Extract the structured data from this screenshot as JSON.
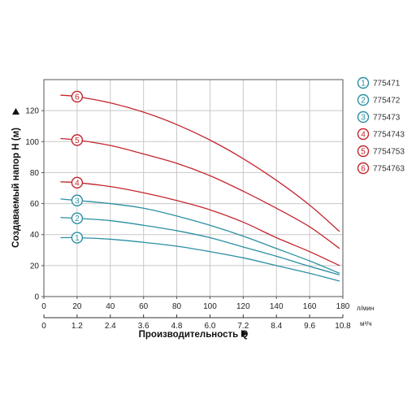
{
  "chart_data": {
    "type": "line",
    "xlabel": "Производительность Q",
    "xunit_primary": "л/мин",
    "xunit_secondary": "м³/ч",
    "ylabel": "Создаваемый напор H (м)",
    "xlim": [
      0,
      180
    ],
    "ylim": [
      0,
      140
    ],
    "x_ticks": [
      "0",
      "20",
      "40",
      "60",
      "80",
      "100",
      "120",
      "140",
      "160",
      "180"
    ],
    "x_ticks_secondary": [
      "0",
      "1.2",
      "2.4",
      "3.6",
      "4.8",
      "6.0",
      "7.2",
      "8.4",
      "9.6",
      "10.8"
    ],
    "y_ticks": [
      "0",
      "20",
      "40",
      "60",
      "80",
      "100",
      "120"
    ],
    "grid": true,
    "legend_position": "right",
    "series": [
      {
        "name": "775471",
        "marker": "1",
        "color": "#2b8fa3",
        "x": [
          10,
          20,
          40,
          60,
          80,
          100,
          120,
          140,
          160,
          178
        ],
        "y": [
          38,
          38,
          37,
          35,
          32.5,
          29,
          25,
          20,
          15,
          10
        ]
      },
      {
        "name": "775472",
        "marker": "2",
        "color": "#2b8fa3",
        "x": [
          10,
          20,
          40,
          60,
          80,
          100,
          120,
          140,
          160,
          178
        ],
        "y": [
          51,
          50.5,
          49,
          46,
          42.5,
          38,
          32,
          26,
          19.5,
          14
        ]
      },
      {
        "name": "775473",
        "marker": "3",
        "color": "#2b8fa3",
        "x": [
          10,
          20,
          40,
          60,
          80,
          100,
          120,
          140,
          160,
          178
        ],
        "y": [
          63,
          62,
          60,
          57,
          52,
          46,
          39,
          31,
          23,
          15
        ]
      },
      {
        "name": "7754743",
        "marker": "4",
        "color": "#c4262e",
        "x": [
          10,
          20,
          40,
          60,
          80,
          100,
          120,
          140,
          160,
          178
        ],
        "y": [
          74,
          73.5,
          71,
          67,
          62,
          56,
          48,
          38,
          29,
          20
        ]
      },
      {
        "name": "7754753",
        "marker": "5",
        "color": "#c4262e",
        "x": [
          10,
          20,
          40,
          60,
          80,
          100,
          120,
          140,
          160,
          178
        ],
        "y": [
          102,
          101,
          97.5,
          92,
          86,
          78,
          68,
          57,
          45,
          31
        ]
      },
      {
        "name": "7754763",
        "marker": "6",
        "color": "#c4262e",
        "x": [
          10,
          20,
          40,
          60,
          80,
          100,
          120,
          140,
          160,
          178
        ],
        "y": [
          130,
          129,
          125,
          119,
          111,
          101,
          89,
          75,
          59,
          42
        ]
      }
    ],
    "marker_x": 20
  }
}
